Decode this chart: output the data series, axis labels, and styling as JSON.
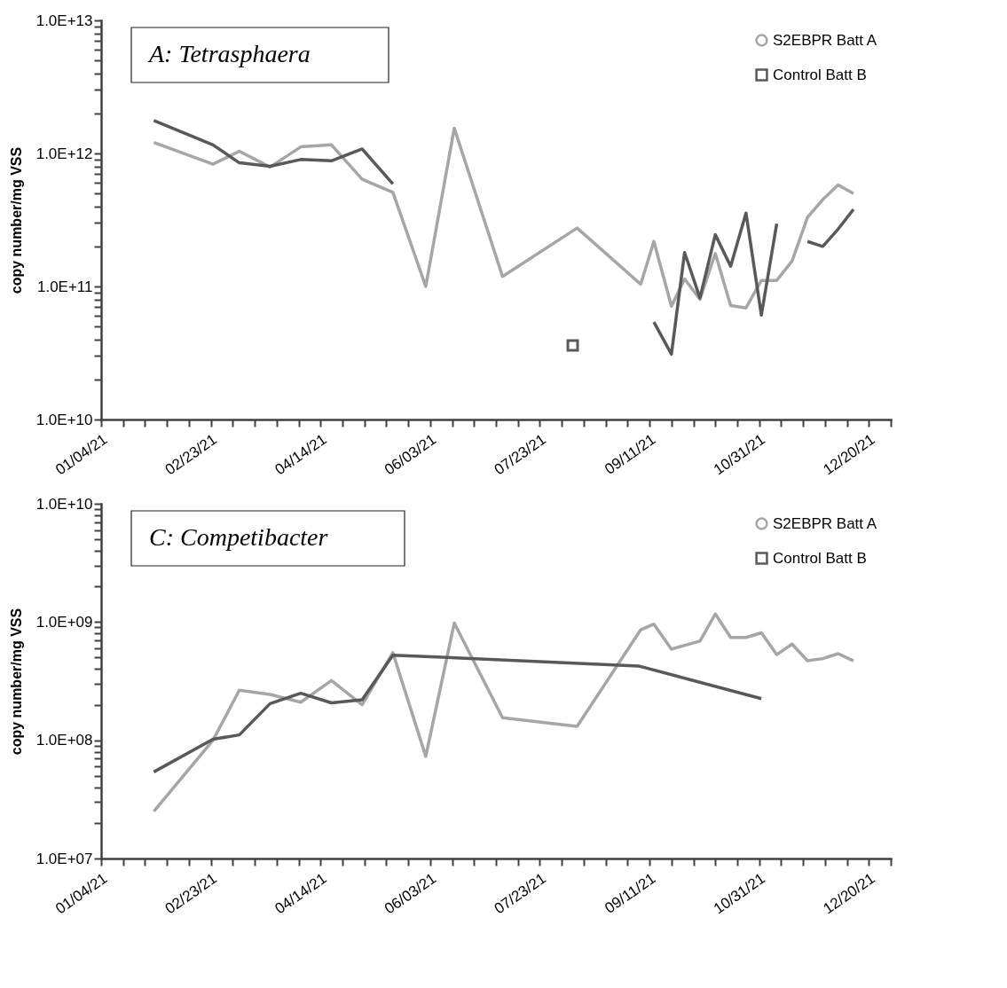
{
  "chart_data": [
    {
      "type": "line",
      "title": "A: Tetrasphaera",
      "ylabel": "copy number/mg VSS",
      "log": "y",
      "grid": false,
      "legend": "top right",
      "xlim": [
        "--01-04",
        "--12-30"
      ],
      "xticks": [
        {
          "value": "--01-04",
          "label": "01/04/21"
        },
        {
          "value": "--01-14",
          "label": null
        },
        {
          "value": "--01-24",
          "label": null
        },
        {
          "value": "--02-03",
          "label": null
        },
        {
          "value": "--02-13",
          "label": null
        },
        {
          "value": "--02-23",
          "label": "02/23/21"
        },
        {
          "value": "--03-05",
          "label": null
        },
        {
          "value": "--03-15",
          "label": null
        },
        {
          "value": "--03-25",
          "label": null
        },
        {
          "value": "--04-04",
          "label": null
        },
        {
          "value": "--04-14",
          "label": "04/14/21"
        },
        {
          "value": "--04-24",
          "label": null
        },
        {
          "value": "--05-04",
          "label": null
        },
        {
          "value": "--05-14",
          "label": null
        },
        {
          "value": "--05-24",
          "label": null
        },
        {
          "value": "--06-03",
          "label": "06/03/21"
        },
        {
          "value": "--06-13",
          "label": null
        },
        {
          "value": "--06-23",
          "label": null
        },
        {
          "value": "--07-03",
          "label": null
        },
        {
          "value": "--07-13",
          "label": null
        },
        {
          "value": "--07-23",
          "label": "07/23/21"
        },
        {
          "value": "--08-02",
          "label": null
        },
        {
          "value": "--08-12",
          "label": null
        },
        {
          "value": "--08-22",
          "label": null
        },
        {
          "value": "--09-01",
          "label": null
        },
        {
          "value": "--09-11",
          "label": "09/11/21"
        },
        {
          "value": "--09-21",
          "label": null
        },
        {
          "value": "--10-01",
          "label": null
        },
        {
          "value": "--10-11",
          "label": null
        },
        {
          "value": "--10-21",
          "label": null
        },
        {
          "value": "--10-31",
          "label": "10/31/21"
        },
        {
          "value": "--11-10",
          "label": null
        },
        {
          "value": "--11-20",
          "label": null
        },
        {
          "value": "--11-30",
          "label": null
        },
        {
          "value": "--12-10",
          "label": null
        },
        {
          "value": "--12-20",
          "label": "12/20/21"
        },
        {
          "value": "--12-30",
          "label": null
        }
      ],
      "ylim": [
        10000000000.0,
        10000000000000.0
      ],
      "yticks": [
        {
          "value": 10000000000.0,
          "label": "1.0E+10"
        },
        {
          "value": 20000000000.0,
          "label": null
        },
        {
          "value": 30000000000.0,
          "label": null
        },
        {
          "value": 40000000000.0,
          "label": null
        },
        {
          "value": 50000000000.0,
          "label": null
        },
        {
          "value": 60000000000.0,
          "label": null
        },
        {
          "value": 70000000000.0,
          "label": null
        },
        {
          "value": 80000000000.0,
          "label": null
        },
        {
          "value": 90000000000.0,
          "label": null
        },
        {
          "value": 100000000000.0,
          "label": "1.0E+11"
        },
        {
          "value": 200000000000.0,
          "label": null
        },
        {
          "value": 300000000000.0,
          "label": null
        },
        {
          "value": 400000000000.0,
          "label": null
        },
        {
          "value": 500000000000.0,
          "label": null
        },
        {
          "value": 600000000000.0,
          "label": null
        },
        {
          "value": 700000000000.0,
          "label": null
        },
        {
          "value": 800000000000.0,
          "label": null
        },
        {
          "value": 900000000000.0,
          "label": null
        },
        {
          "value": 1000000000000.0,
          "label": "1.0E+12"
        },
        {
          "value": 2000000000000.0,
          "label": null
        },
        {
          "value": 3000000000000.0,
          "label": null
        },
        {
          "value": 4000000000000.0,
          "label": null
        },
        {
          "value": 5000000000000.0,
          "label": null
        },
        {
          "value": 6000000000000.0,
          "label": null
        },
        {
          "value": 7000000000000.0,
          "label": null
        },
        {
          "value": 8000000000000.0,
          "label": null
        },
        {
          "value": 9000000000000.0,
          "label": null
        },
        {
          "value": 10000000000000.0,
          "label": "1.0E+13"
        }
      ],
      "series": [
        {
          "name": "S2EBPR Batt A",
          "color": "#a6a6a6",
          "x": [
            "--01-28",
            "--02-24",
            "--03-08",
            "--03-22",
            "--04-05",
            "--04-19",
            "--05-03",
            "--05-17",
            "--06-01",
            "--06-14",
            "--07-06",
            "--08-09",
            "--09-07",
            "--09-13",
            "--09-21",
            "--09-27",
            "--10-04",
            "--10-11",
            "--10-18",
            "--10-25",
            "--11-01",
            "--11-08",
            "--11-15",
            "--11-22",
            "--11-29",
            "--12-06",
            "--12-13"
          ],
          "values": [
            1210000000000.0,
            830000000000.0,
            1040000000000.0,
            790000000000.0,
            1120000000000.0,
            1160000000000.0,
            640000000000.0,
            510000000000.0,
            100000000000.0,
            1550000000000.0,
            119000000000.0,
            275000000000.0,
            104000000000.0,
            218000000000.0,
            71000000000.0,
            114000000000.0,
            80000000000.0,
            177000000000.0,
            72000000000.0,
            69000000000.0,
            111000000000.0,
            111000000000.0,
            155000000000.0,
            330000000000.0,
            450000000000.0,
            580000000000.0,
            500000000000.0
          ]
        },
        {
          "name": "Control Batt B",
          "color": "#595959",
          "x": [
            "--01-28",
            "--02-24",
            "--03-08",
            "--03-22",
            "--04-05",
            "--04-19",
            "--05-03",
            "--05-17",
            "--06-01",
            "--08-07",
            "--09-07",
            "--09-13",
            "--09-21",
            "--09-27",
            "--10-04",
            "--10-11",
            "--10-18",
            "--10-25",
            "--11-01",
            "--11-08",
            "--11-15",
            "--11-22",
            "--11-29",
            "--12-06",
            "--12-13"
          ],
          "values": [
            1770000000000.0,
            1160000000000.0,
            850000000000.0,
            800000000000.0,
            900000000000.0,
            880000000000.0,
            1080000000000.0,
            590000000000.0,
            null,
            36000000000.0,
            null,
            54000000000.0,
            31000000000.0,
            180000000000.0,
            82000000000.0,
            245000000000.0,
            142000000000.0,
            356000000000.0,
            61000000000.0,
            296000000000.0,
            null,
            218000000000.0,
            200000000000.0,
            270000000000.0,
            380000000000.0
          ]
        }
      ]
    },
    {
      "type": "line",
      "title": "C: Competibacter",
      "ylabel": "copy number/mg VSS",
      "log": "y",
      "grid": false,
      "legend": "top right",
      "xlim": [
        "--01-04",
        "--12-30"
      ],
      "xticks": [
        {
          "value": "--01-04",
          "label": "01/04/21"
        },
        {
          "value": "--01-14",
          "label": null
        },
        {
          "value": "--01-24",
          "label": null
        },
        {
          "value": "--02-03",
          "label": null
        },
        {
          "value": "--02-13",
          "label": null
        },
        {
          "value": "--02-23",
          "label": "02/23/21"
        },
        {
          "value": "--03-05",
          "label": null
        },
        {
          "value": "--03-15",
          "label": null
        },
        {
          "value": "--03-25",
          "label": null
        },
        {
          "value": "--04-04",
          "label": null
        },
        {
          "value": "--04-14",
          "label": "04/14/21"
        },
        {
          "value": "--04-24",
          "label": null
        },
        {
          "value": "--05-04",
          "label": null
        },
        {
          "value": "--05-14",
          "label": null
        },
        {
          "value": "--05-24",
          "label": null
        },
        {
          "value": "--06-03",
          "label": "06/03/21"
        },
        {
          "value": "--06-13",
          "label": null
        },
        {
          "value": "--06-23",
          "label": null
        },
        {
          "value": "--07-03",
          "label": null
        },
        {
          "value": "--07-13",
          "label": null
        },
        {
          "value": "--07-23",
          "label": "07/23/21"
        },
        {
          "value": "--08-02",
          "label": null
        },
        {
          "value": "--08-12",
          "label": null
        },
        {
          "value": "--08-22",
          "label": null
        },
        {
          "value": "--09-01",
          "label": null
        },
        {
          "value": "--09-11",
          "label": "09/11/21"
        },
        {
          "value": "--09-21",
          "label": null
        },
        {
          "value": "--10-01",
          "label": null
        },
        {
          "value": "--10-11",
          "label": null
        },
        {
          "value": "--10-21",
          "label": null
        },
        {
          "value": "--10-31",
          "label": "10/31/21"
        },
        {
          "value": "--11-10",
          "label": null
        },
        {
          "value": "--11-20",
          "label": null
        },
        {
          "value": "--11-30",
          "label": null
        },
        {
          "value": "--12-10",
          "label": null
        },
        {
          "value": "--12-20",
          "label": "12/20/21"
        },
        {
          "value": "--12-30",
          "label": null
        }
      ],
      "ylim": [
        10000000.0,
        10000000000.0
      ],
      "yticks": [
        {
          "value": 10000000.0,
          "label": "1.0E+07"
        },
        {
          "value": 20000000.0,
          "label": null
        },
        {
          "value": 30000000.0,
          "label": null
        },
        {
          "value": 40000000.0,
          "label": null
        },
        {
          "value": 50000000.0,
          "label": null
        },
        {
          "value": 60000000.0,
          "label": null
        },
        {
          "value": 70000000.0,
          "label": null
        },
        {
          "value": 80000000.0,
          "label": null
        },
        {
          "value": 90000000.0,
          "label": null
        },
        {
          "value": 100000000.0,
          "label": "1.0E+08"
        },
        {
          "value": 200000000.0,
          "label": null
        },
        {
          "value": 300000000.0,
          "label": null
        },
        {
          "value": 400000000.0,
          "label": null
        },
        {
          "value": 500000000.0,
          "label": null
        },
        {
          "value": 600000000.0,
          "label": null
        },
        {
          "value": 700000000.0,
          "label": null
        },
        {
          "value": 800000000.0,
          "label": null
        },
        {
          "value": 900000000.0,
          "label": null
        },
        {
          "value": 1000000000.0,
          "label": "1.0E+09"
        },
        {
          "value": 2000000000.0,
          "label": null
        },
        {
          "value": 3000000000.0,
          "label": null
        },
        {
          "value": 4000000000.0,
          "label": null
        },
        {
          "value": 5000000000.0,
          "label": null
        },
        {
          "value": 6000000000.0,
          "label": null
        },
        {
          "value": 7000000000.0,
          "label": null
        },
        {
          "value": 8000000000.0,
          "label": null
        },
        {
          "value": 9000000000.0,
          "label": null
        },
        {
          "value": 10000000000.0,
          "label": "1.0E+10"
        }
      ],
      "series": [
        {
          "name": "S2EBPR Batt A",
          "color": "#a6a6a6",
          "x": [
            "--01-28",
            "--02-24",
            "--03-08",
            "--03-22",
            "--04-05",
            "--04-19",
            "--05-03",
            "--05-17",
            "--06-01",
            "--06-14",
            "--07-06",
            "--08-09",
            "--09-07",
            "--09-13",
            "--09-21",
            "--10-04",
            "--10-11",
            "--10-18",
            "--10-25",
            "--11-01",
            "--11-08",
            "--11-15",
            "--11-22",
            "--11-29",
            "--12-06",
            "--12-13"
          ],
          "values": [
            25000000.0,
            100000000.0,
            265000000.0,
            244000000.0,
            210000000.0,
            320000000.0,
            200000000.0,
            550000000.0,
            73000000.0,
            980000000.0,
            155000000.0,
            131000000.0,
            860000000.0,
            960000000.0,
            590000000.0,
            690000000.0,
            1170000000.0,
            740000000.0,
            740000000.0,
            810000000.0,
            530000000.0,
            650000000.0,
            470000000.0,
            490000000.0,
            540000000.0,
            470000000.0
          ]
        },
        {
          "name": "Control Batt B",
          "color": "#595959",
          "x": [
            "--01-28",
            "--02-24",
            "--03-08",
            "--03-22",
            "--04-05",
            "--04-19",
            "--05-03",
            "--05-17",
            "--09-06",
            "--11-01"
          ],
          "values": [
            54000000.0,
            102000000.0,
            111000000.0,
            204000000.0,
            250000000.0,
            207000000.0,
            220000000.0,
            525000000.0,
            425000000.0,
            225000000.0
          ]
        }
      ]
    }
  ]
}
